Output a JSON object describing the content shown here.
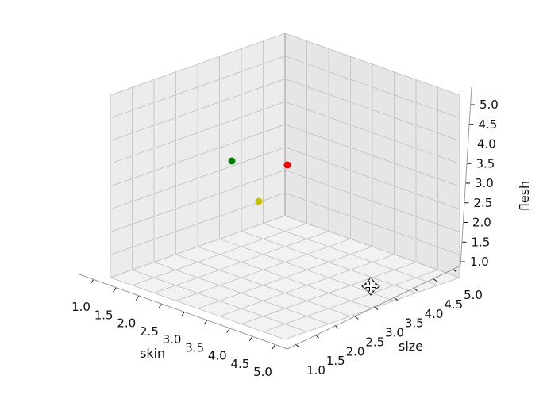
{
  "chart_data": {
    "type": "scatter",
    "projection": "3d",
    "xlabel": "skin",
    "ylabel": "size",
    "zlabel": "flesh",
    "xlim": [
      1.0,
      5.0
    ],
    "ylim": [
      1.0,
      5.0
    ],
    "zlim": [
      1.0,
      5.0
    ],
    "xticks": [
      "1.0",
      "1.5",
      "2.0",
      "2.5",
      "3.0",
      "3.5",
      "4.0",
      "4.5",
      "5.0"
    ],
    "yticks": [
      "1.0",
      "1.5",
      "2.0",
      "2.5",
      "3.0",
      "3.5",
      "4.0",
      "4.5",
      "5.0"
    ],
    "zticks": [
      "1.0",
      "1.5",
      "2.0",
      "2.5",
      "3.0",
      "3.5",
      "4.0",
      "4.5",
      "5.0"
    ],
    "grid": true,
    "points": [
      {
        "x": 1.0,
        "y": 4.6,
        "z": 4.8,
        "color": "#008000"
      },
      {
        "x": 4.4,
        "y": 4.8,
        "z": 3.5,
        "color": "#ff0000"
      },
      {
        "x": 1.0,
        "y": 5.0,
        "z": 1.8,
        "color": "#c8c000"
      }
    ]
  },
  "toolbar": {
    "cursor_icon": "move-cursor-icon"
  }
}
